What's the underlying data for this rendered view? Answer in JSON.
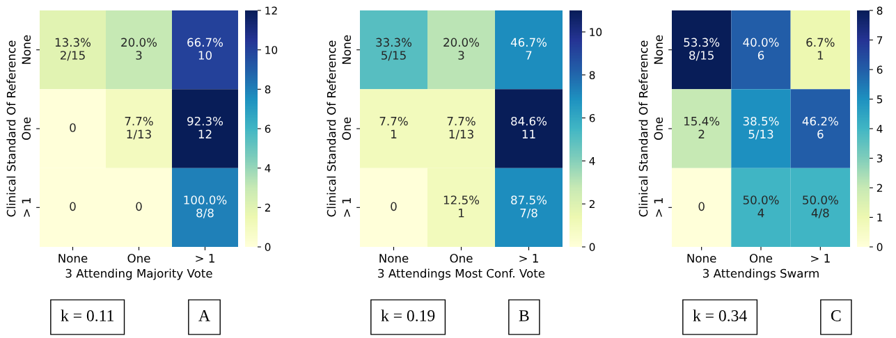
{
  "chart_data": [
    {
      "type": "heatmap",
      "xlabel": "3 Attending Majority Vote",
      "ylabel": "Clinical Standard Of Reference",
      "categories": [
        "None",
        "One",
        "> 1"
      ],
      "y_categories": [
        "None",
        "One",
        "> 1"
      ],
      "cells": [
        [
          2,
          3,
          10
        ],
        [
          0,
          1,
          12
        ],
        [
          0,
          0,
          8
        ]
      ],
      "cell_labels": [
        [
          "13.3%\n2/15",
          "20.0%\n3",
          "66.7%\n10"
        ],
        [
          "0",
          "7.7%\n1/13",
          "92.3%\n12"
        ],
        [
          "0",
          "0",
          "100.0%\n8/8"
        ]
      ],
      "clim": [
        0,
        12
      ],
      "cticks": [
        0,
        2,
        4,
        6,
        8,
        10,
        12
      ],
      "annotations": [
        "k = 0.11",
        "A"
      ]
    },
    {
      "type": "heatmap",
      "xlabel": "3 Attendings Most Conf. Vote",
      "ylabel": "Clinical Standard Of Reference",
      "categories": [
        "None",
        "One",
        "> 1"
      ],
      "y_categories": [
        "None",
        "One",
        "> 1"
      ],
      "cells": [
        [
          5,
          3,
          7
        ],
        [
          1,
          1,
          11
        ],
        [
          0,
          1,
          7
        ]
      ],
      "cell_labels": [
        [
          "33.3%\n5/15",
          "20.0%\n3",
          "46.7%\n7"
        ],
        [
          "7.7%\n1",
          "7.7%\n1/13",
          "84.6%\n11"
        ],
        [
          "0",
          "12.5%\n1",
          "87.5%\n7/8"
        ]
      ],
      "clim": [
        0,
        11
      ],
      "cticks": [
        0,
        2,
        4,
        6,
        8,
        10
      ],
      "annotations": [
        "k = 0.19",
        "B"
      ]
    },
    {
      "type": "heatmap",
      "xlabel": "3 Attendings Swarm",
      "ylabel": "Clinical Standard Of Reference",
      "categories": [
        "None",
        "One",
        "> 1"
      ],
      "y_categories": [
        "None",
        "One",
        "> 1"
      ],
      "cells": [
        [
          8,
          6,
          1
        ],
        [
          2,
          5,
          6
        ],
        [
          0,
          4,
          4
        ]
      ],
      "cell_labels": [
        [
          "53.3%\n8/15",
          "40.0%\n6",
          "6.7%\n1"
        ],
        [
          "15.4%\n2",
          "38.5%\n5/13",
          "46.2%\n6"
        ],
        [
          "0",
          "50.0%\n4",
          "50.0%\n4/8"
        ]
      ],
      "clim": [
        0,
        8
      ],
      "cticks": [
        0,
        1,
        2,
        3,
        4,
        5,
        6,
        7,
        8
      ],
      "annotations": [
        "k = 0.34",
        "C"
      ]
    }
  ]
}
